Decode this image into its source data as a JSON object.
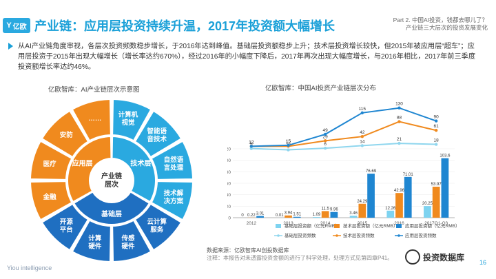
{
  "header": {
    "logo_text": "亿欧",
    "title": "产业链：应用层投资持续升温，2017年投资额大幅增长",
    "part_line1": "Part 2. 中国AI投资，钱都去哪儿了？",
    "part_line2": "产业链三大层次的投资发展变化"
  },
  "bullet": {
    "text": "从AI产业链角度审视，各层次投资频数稳步增长，于2016年达到峰值。基础层投资额稳步上升；技术层投资增长较快，但2015年被应用层“超车”；应用层投资于2015年出现大幅增长（增长率达约670%），经过2016年的小幅度下降后，2017年再次出现大幅度增长，与2016年相比，2017年前三季度投资额增长率达约46%。"
  },
  "donut": {
    "title": "亿欧智库：AI产业链层次示意图",
    "center": "产业链层次",
    "inner": [
      "应用层",
      "技术层",
      "基础层"
    ],
    "outer_app": [
      "金融",
      "医疗",
      "安防",
      "……"
    ],
    "outer_tech": [
      "计算机视觉",
      "智能语音技术",
      "自然语言处理",
      "技术解决方案"
    ],
    "outer_base": [
      "云计算服务",
      "传感硬件",
      "计算硬件",
      "开源平台"
    ],
    "colors": {
      "app": "#f08a1e",
      "tech": "#2aa9e0",
      "base": "#1f6fc1"
    }
  },
  "chart_data": {
    "type": "bar",
    "title": "亿欧智库：中国AI投资产业链层次分布",
    "categories": [
      "2012",
      "2013",
      "2014",
      "2015",
      "2016",
      "2017Q1-Q3"
    ],
    "ylim": [
      0,
      120
    ],
    "yticks": [
      0,
      20,
      40,
      60,
      80,
      100,
      120
    ],
    "series": [
      {
        "name": "基础层投资额（亿元RMB）",
        "type": "bar",
        "color": "#7ed3f0",
        "values": [
          0,
          0.01,
          1.09,
          3.46,
          12.26,
          20.25
        ]
      },
      {
        "name": "技术层投资额（亿元RMB）",
        "type": "bar",
        "color": "#f08a1e",
        "values": [
          0.22,
          3.94,
          11.5,
          24.29,
          42.96,
          53.97
        ]
      },
      {
        "name": "应用层投资额（亿元RMB）",
        "type": "bar",
        "color": "#1f86d1",
        "values": [
          3.01,
          1.51,
          9.96,
          76.69,
          71.01,
          103.6
        ]
      },
      {
        "name": "基础层投资频数",
        "type": "line",
        "color": "#8fd6ee",
        "values": [
          5,
          1,
          6,
          14,
          21,
          18
        ]
      },
      {
        "name": "技术层投资频数",
        "type": "line",
        "color": "#f08a1e",
        "values": [
          12,
          12,
          29,
          42,
          88,
          61
        ]
      },
      {
        "name": "应用层投资频数",
        "type": "line",
        "color": "#1f86d1",
        "values": [
          12,
          15,
          49,
          115,
          130,
          90
        ]
      }
    ],
    "line_ylim": [
      0,
      140
    ]
  },
  "source": {
    "line1": "数据来源：亿欧智库AI创投数据库",
    "line2": "注释：本报告对未透露投资金额的进行了科学处理，处理方式见第四章P41。"
  },
  "footer": {
    "brand": "Yiou intelligence",
    "wechat": "投资数据库",
    "page": "16"
  }
}
